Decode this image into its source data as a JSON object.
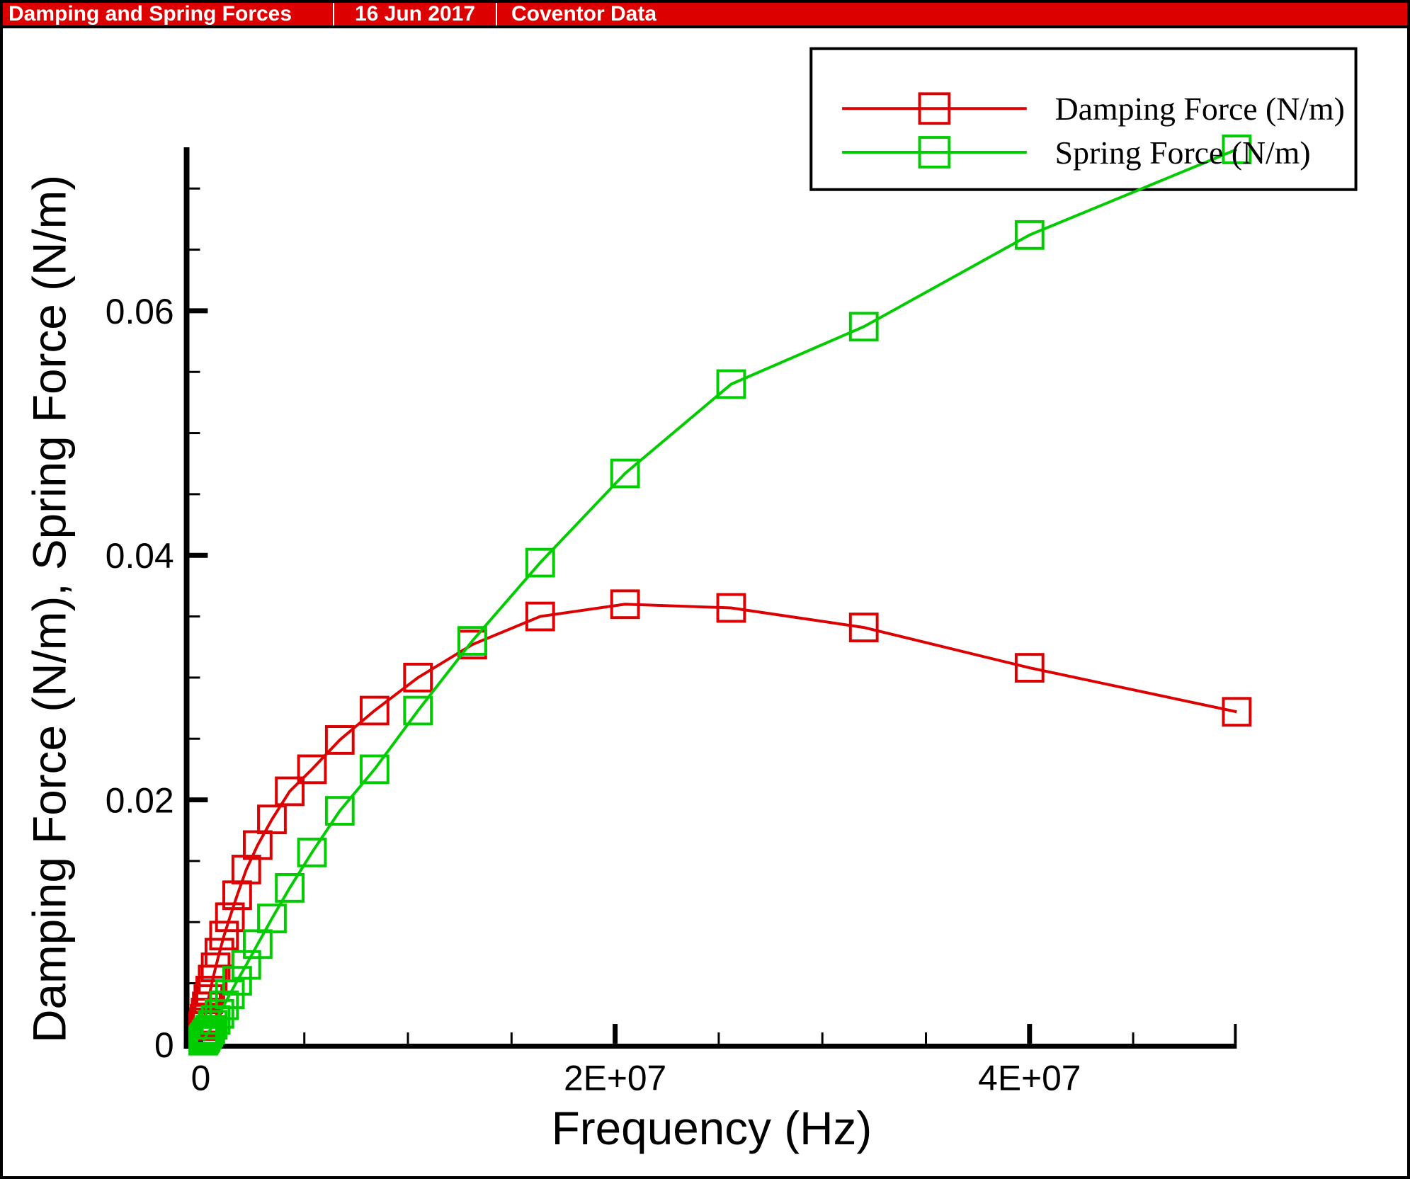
{
  "titlebar": {
    "title": "Damping and Spring Forces",
    "date": "16 Jun 2017",
    "source": "Coventor Data",
    "bg_color": "#DD0000",
    "text_color": "#FFFFFF"
  },
  "legend": {
    "position": "top-right",
    "entries": [
      {
        "label": "Damping Force (N/m)",
        "color": "#DD0000",
        "marker": "open-square"
      },
      {
        "label": "Spring Force (N/m)",
        "color": "#00CC00",
        "marker": "open-square"
      }
    ]
  },
  "chart_data": {
    "type": "line",
    "title": "Damping and Spring Forces",
    "xlabel": "Frequency (Hz)",
    "ylabel": "Damping Force (N/m), Spring Force (N/m)",
    "xlim": [
      0,
      50300000
    ],
    "ylim": [
      0,
      0.073
    ],
    "grid": false,
    "marker": "open-square",
    "legend_position": "top-right",
    "x_major_ticks": [
      {
        "value": 0,
        "label": "0"
      },
      {
        "value": 20000000,
        "label": "2E+07"
      },
      {
        "value": 40000000,
        "label": "4E+07"
      }
    ],
    "x_minor_ticks": [
      5000000,
      10000000,
      15000000,
      25000000,
      30000000,
      35000000,
      45000000
    ],
    "y_major_ticks": [
      {
        "value": 0,
        "label": "0"
      },
      {
        "value": 0.02,
        "label": "0.02"
      },
      {
        "value": 0.04,
        "label": "0.04"
      },
      {
        "value": 0.06,
        "label": "0.06"
      }
    ],
    "y_minor_ticks": [
      0.005,
      0.01,
      0.015,
      0.025,
      0.03,
      0.035,
      0.045,
      0.05,
      0.055,
      0.065,
      0.07
    ],
    "x": [
      120893,
      151116,
      188895,
      236118,
      295148,
      368935,
      461169,
      576461,
      720576,
      900720,
      1125900,
      1407375,
      1759219,
      2199023,
      2748779,
      3435974,
      4294967,
      5368709,
      6710886,
      8388608,
      10485760,
      13107200,
      16384000,
      20480000,
      25600000,
      32000000,
      40000000,
      50000000
    ],
    "series": [
      {
        "name": "Damping Force (N/m)",
        "color": "#DD0000",
        "values": [
          0.0015,
          0.0018,
          0.0021,
          0.0026,
          0.0031,
          0.0037,
          0.0044,
          0.0053,
          0.0063,
          0.0075,
          0.0089,
          0.0104,
          0.0122,
          0.0143,
          0.0163,
          0.0184,
          0.0207,
          0.0225,
          0.0249,
          0.0273,
          0.03,
          0.0327,
          0.035,
          0.036,
          0.0357,
          0.0341,
          0.0308,
          0.0272
        ]
      },
      {
        "name": "Spring Force (N/m)",
        "color": "#00CC00",
        "values": [
          0.0003,
          0.0004,
          0.0005,
          0.0006,
          0.0008,
          0.001,
          0.0012,
          0.0016,
          0.002,
          0.0025,
          0.0032,
          0.0041,
          0.0052,
          0.0065,
          0.0082,
          0.0103,
          0.0128,
          0.0157,
          0.0191,
          0.0225,
          0.0273,
          0.033,
          0.0394,
          0.0467,
          0.054,
          0.0587,
          0.0662,
          0.0732
        ]
      }
    ]
  }
}
